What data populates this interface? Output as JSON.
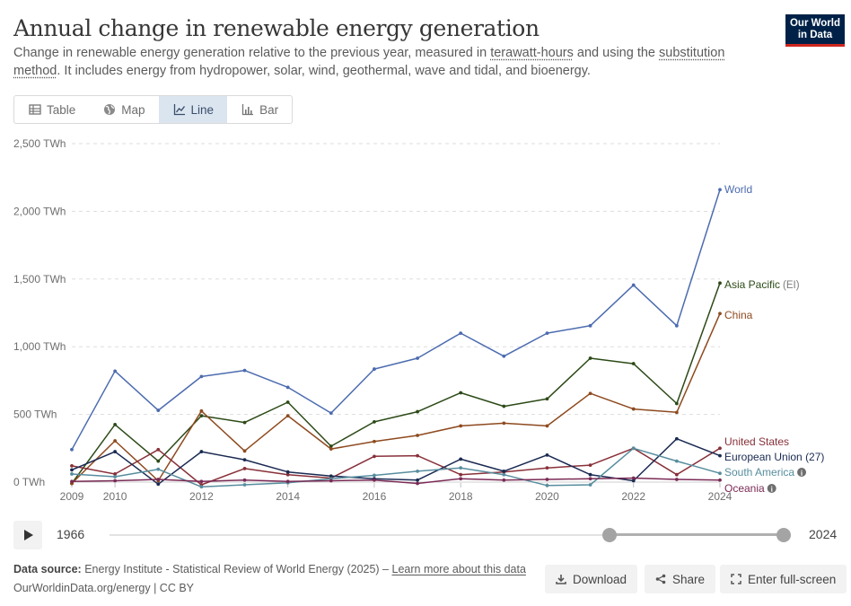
{
  "header": {
    "title": "Annual change in renewable energy generation",
    "subtitle_part1": "Change in renewable energy generation relative to the previous year, measured in ",
    "subtitle_link1": "terawatt-hours",
    "subtitle_part2": " and using the ",
    "subtitle_link2": "substitution method",
    "subtitle_part3": ". It includes energy from hydropower, solar, wind, geothermal, wave and tidal, and bioenergy."
  },
  "logo": {
    "line1": "Our World",
    "line2": "in Data"
  },
  "tabs": [
    {
      "label": "Table",
      "icon": "table-icon"
    },
    {
      "label": "Map",
      "icon": "globe-icon"
    },
    {
      "label": "Line",
      "icon": "line-chart-icon",
      "active": true
    },
    {
      "label": "Bar",
      "icon": "bar-chart-icon"
    }
  ],
  "chart_data": {
    "type": "line",
    "title": "Annual change in renewable energy generation",
    "x": [
      2009,
      2010,
      2011,
      2012,
      2013,
      2014,
      2015,
      2016,
      2017,
      2018,
      2019,
      2020,
      2021,
      2022,
      2023,
      2024
    ],
    "x_ticks": [
      2009,
      2010,
      2012,
      2014,
      2016,
      2018,
      2020,
      2022,
      2024
    ],
    "y_ticks": [
      {
        "value": 0,
        "label": "0 TWh"
      },
      {
        "value": 500,
        "label": "500 TWh"
      },
      {
        "value": 1000,
        "label": "1,000 TWh"
      },
      {
        "value": 1500,
        "label": "1,500 TWh"
      },
      {
        "value": 2000,
        "label": "2,000 TWh"
      },
      {
        "value": 2500,
        "label": "2,500 TWh"
      }
    ],
    "ylim": [
      -30,
      2500
    ],
    "grid": "horizontal-dashed",
    "legend": "right-end-labels",
    "series": [
      {
        "name": "World",
        "color": "#4c6baf",
        "label_color": "#4c6baf",
        "values": [
          240,
          820,
          530,
          780,
          825,
          700,
          510,
          835,
          915,
          1100,
          930,
          1100,
          1155,
          1455,
          1155,
          2160
        ]
      },
      {
        "name": "Asia Pacific",
        "suffix": "(EI)",
        "color": "#2c4a17",
        "label_color": "#2c4a17",
        "values": [
          -10,
          425,
          155,
          490,
          440,
          590,
          265,
          445,
          520,
          660,
          560,
          615,
          915,
          875,
          580,
          1470
        ]
      },
      {
        "name": "China",
        "color": "#8e4a1f",
        "label_color": "#8e4a1f",
        "values": [
          -10,
          305,
          10,
          525,
          230,
          490,
          245,
          300,
          345,
          415,
          435,
          415,
          655,
          540,
          515,
          1245
        ]
      },
      {
        "name": "United States",
        "color": "#883039",
        "label_color": "#883039",
        "values": [
          120,
          60,
          240,
          -20,
          100,
          55,
          30,
          190,
          195,
          55,
          75,
          105,
          125,
          250,
          55,
          250
        ]
      },
      {
        "name": "European Union (27)",
        "color": "#1a2a52",
        "label_color": "#1a2a52",
        "values": [
          90,
          225,
          -15,
          225,
          165,
          75,
          45,
          25,
          15,
          170,
          80,
          200,
          55,
          10,
          320,
          195
        ]
      },
      {
        "name": "South America",
        "color": "#578d9e",
        "label_color": "#578d9e",
        "info": true,
        "values": [
          60,
          40,
          95,
          -35,
          -20,
          -5,
          25,
          50,
          80,
          105,
          55,
          -25,
          -20,
          250,
          155,
          65
        ]
      },
      {
        "name": "Oceania",
        "color": "#7a2a55",
        "label_color": "#7a2a55",
        "info": true,
        "values": [
          5,
          10,
          20,
          5,
          15,
          5,
          10,
          15,
          -10,
          25,
          15,
          20,
          25,
          30,
          20,
          15
        ]
      }
    ]
  },
  "timeline": {
    "start_label": "1966",
    "end_label": "2024"
  },
  "footer": {
    "source_label": "Data source:",
    "source_text": " Energy Institute - Statistical Review of World Energy (2025) – ",
    "source_link": "Learn more about this data",
    "site": "OurWorldinData.org/energy | CC BY"
  },
  "actions": {
    "download": "Download",
    "share": "Share",
    "fullscreen": "Enter full-screen"
  },
  "info_glyph": "i"
}
